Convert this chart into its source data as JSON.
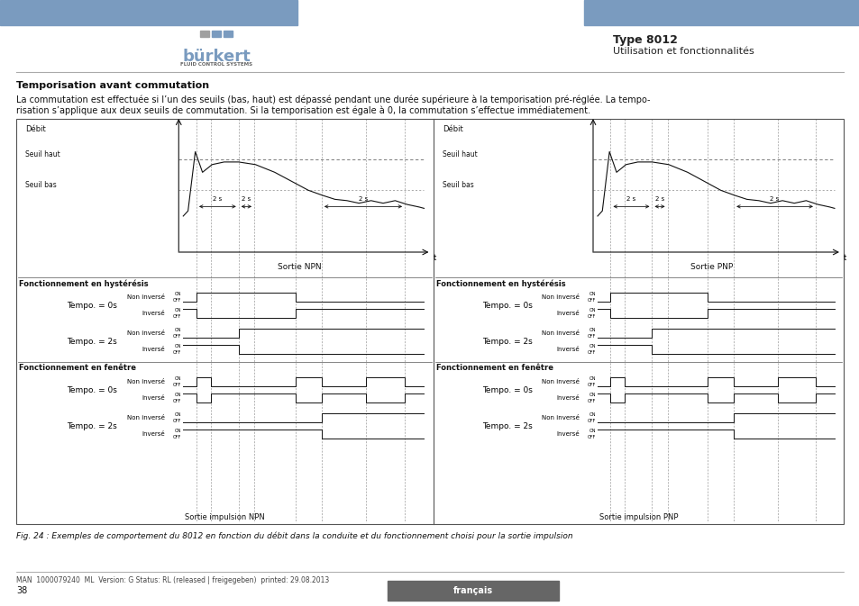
{
  "page_bg": "#ffffff",
  "header_bar_color": "#7a9bbf",
  "brand_text": "burkert",
  "brand_sub": "FLUID CONTROL SYSTEMS",
  "type_text": "Type 8012",
  "util_text": "Utilisation et fonctionnalités",
  "title_bold": "Temporisation avant commutation",
  "body_line1": "La commutation est effectuée si l’un des seuils (bas, haut) est dépassé pendant une durée supérieure à la temporisation pré-réglée. La tempo-",
  "body_line2": "risation s’applique aux deux seuils de commutation. Si la temporisation est égale à 0, la commutation s’effectue immédiatement.",
  "fig_caption": "Fig. 24 : Exemples de comportement du 8012 en fonction du débit dans la conduite et du fonctionnement choisi pour la sortie impulsion",
  "footer_left": "MAN  1000079240  ML  Version: G Status: RL (released | freigegeben)  printed: 29.08.2013",
  "footer_page": "38",
  "footer_lang": "français",
  "left_panel_title": "Sortie NPN",
  "right_panel_title": "Sortie PNP",
  "left_impulse": "Sortie impulsion NPN",
  "right_impulse": "Sortie impulsion PNP",
  "hyst_section": "Fonctionnement en hystérésis",
  "window_section": "Fonctionnement en fenêtre",
  "tempo0": "Tempo. = 0s",
  "tempo2": "Tempo. = 2s",
  "non_inverse": "Non inversé",
  "inverse": "Inversé",
  "debit": "Débit",
  "seuil_haut": "Seuil haut",
  "seuil_bas": "Seuil bas",
  "time_label": "t",
  "time_2s": "2 s"
}
